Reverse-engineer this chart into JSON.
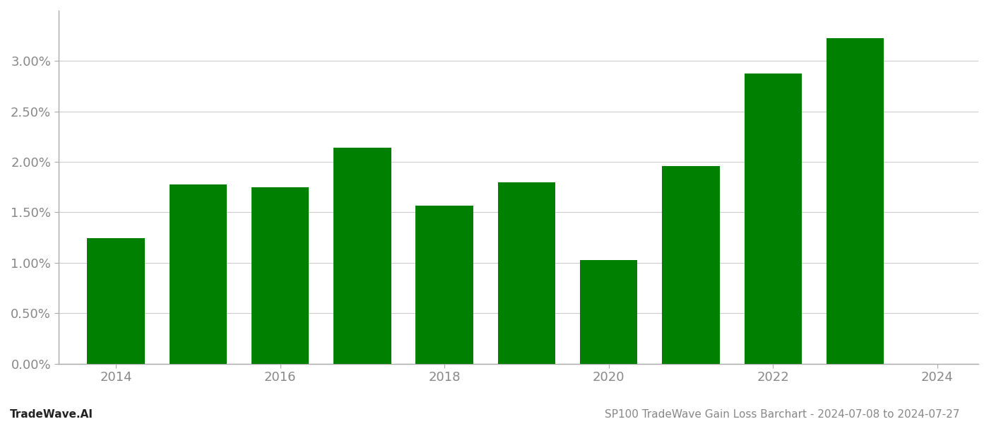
{
  "years": [
    2014,
    2015,
    2016,
    2017,
    2018,
    2019,
    2020,
    2021,
    2022,
    2023
  ],
  "values": [
    0.01247,
    0.01778,
    0.01748,
    0.02138,
    0.01568,
    0.018,
    0.0103,
    0.0196,
    0.02875,
    0.0323
  ],
  "bar_color": "#008000",
  "title": "SP100 TradeWave Gain Loss Barchart - 2024-07-08 to 2024-07-27",
  "watermark": "TradeWave.AI",
  "ylim": [
    0,
    0.035
  ],
  "yticks": [
    0.0,
    0.005,
    0.01,
    0.015,
    0.02,
    0.025,
    0.03
  ],
  "xticks": [
    2014,
    2016,
    2018,
    2020,
    2022,
    2024
  ],
  "xlim_min": 2013.3,
  "xlim_max": 2024.5,
  "background_color": "#ffffff",
  "grid_color": "#cccccc",
  "bar_width": 0.7,
  "title_fontsize": 11,
  "watermark_fontsize": 11,
  "tick_fontsize": 13,
  "tick_color": "#888888"
}
